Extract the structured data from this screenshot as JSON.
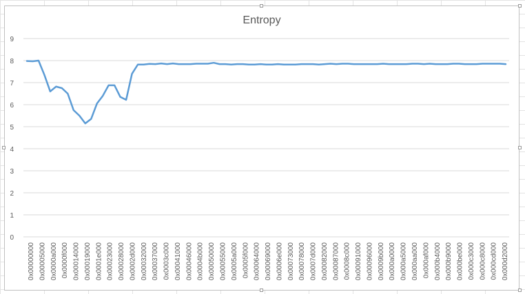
{
  "chart_data": {
    "type": "line",
    "title": "Entropy",
    "xlabel": "",
    "ylabel": "",
    "ylim": [
      0,
      9
    ],
    "yticks": [
      0,
      1,
      2,
      3,
      4,
      5,
      6,
      7,
      8,
      9
    ],
    "grid": true,
    "legend": "none",
    "line_color": "#5b9bd5",
    "x_tick_labels": [
      "0x00000000",
      "0x00005000",
      "0x0000a000",
      "0x0000f000",
      "0x00014000",
      "0x00019000",
      "0x0001e000",
      "0x00023000",
      "0x00028000",
      "0x0002d000",
      "0x00032000",
      "0x00037000",
      "0x0003c000",
      "0x00041000",
      "0x00046000",
      "0x0004b000",
      "0x00050000",
      "0x00055000",
      "0x0005a000",
      "0x0005f000",
      "0x00064000",
      "0x00069000",
      "0x0006e000",
      "0x00073000",
      "0x00078000",
      "0x0007d000",
      "0x00082000",
      "0x00087000",
      "0x0008c000",
      "0x00091000",
      "0x00096000",
      "0x0009b000",
      "0x000a0000",
      "0x000a5000",
      "0x000aa000",
      "0x000af000",
      "0x000b4000",
      "0x000b9000",
      "0x000be000",
      "0x000c3000",
      "0x000c8000",
      "0x000cd000",
      "0x000d2000"
    ],
    "values": [
      7.98,
      7.97,
      8.0,
      7.35,
      6.6,
      6.82,
      6.75,
      6.5,
      5.75,
      5.5,
      5.15,
      5.35,
      6.05,
      6.4,
      6.88,
      6.88,
      6.35,
      6.22,
      7.4,
      7.82,
      7.82,
      7.85,
      7.84,
      7.87,
      7.84,
      7.87,
      7.84,
      7.84,
      7.84,
      7.86,
      7.86,
      7.86,
      7.9,
      7.84,
      7.84,
      7.82,
      7.84,
      7.84,
      7.82,
      7.82,
      7.84,
      7.82,
      7.82,
      7.84,
      7.82,
      7.82,
      7.82,
      7.84,
      7.84,
      7.84,
      7.82,
      7.84,
      7.86,
      7.84,
      7.86,
      7.86,
      7.84,
      7.84,
      7.84,
      7.84,
      7.84,
      7.86,
      7.84,
      7.84,
      7.84,
      7.84,
      7.86,
      7.86,
      7.84,
      7.86,
      7.84,
      7.84,
      7.84,
      7.86,
      7.86,
      7.84,
      7.84,
      7.84,
      7.86,
      7.86,
      7.86,
      7.86,
      7.84
    ]
  }
}
